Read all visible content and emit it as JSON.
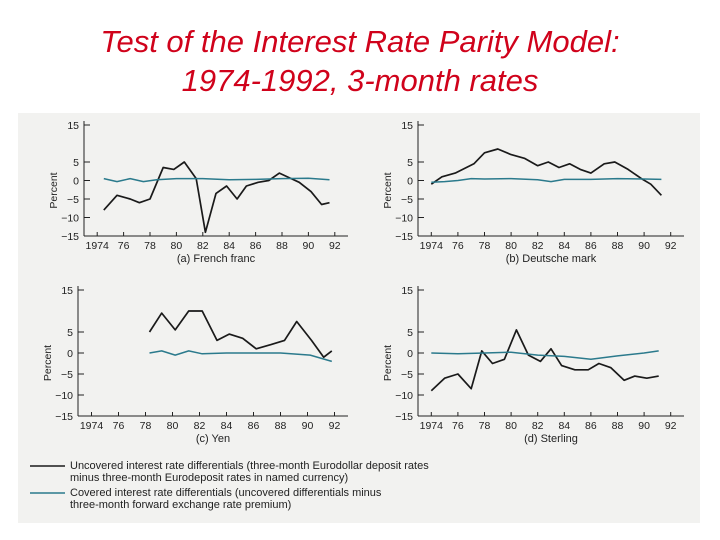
{
  "slide": {
    "title_line1": "Test of the Interest Rate Parity Model:",
    "title_line2": "1974-1992, 3-month rates"
  },
  "colors": {
    "uncovered": "#1a1a1a",
    "covered": "#2b7a8c",
    "title": "#d0021b"
  },
  "legend": {
    "uncovered_line1": "Uncovered interest rate differentials (three-month Eurodollar deposit rates",
    "uncovered_line2": "minus three-month Eurodeposit rates in named currency)",
    "covered_line1": "Covered interest rate differentials (uncovered differentials minus",
    "covered_line2": "three-month forward exchange rate premium)"
  },
  "chart_data": [
    {
      "type": "line",
      "caption": "(a) French franc",
      "ylabel": "Percent",
      "ylim": [
        -15,
        15
      ],
      "yticks": [
        "15",
        "5",
        "0",
        "−5",
        "−10",
        "−15"
      ],
      "yvals": [
        15,
        5,
        0,
        -5,
        -10,
        -15
      ],
      "xlim": [
        1973,
        1993
      ],
      "xtick_labels": [
        "1974",
        "76",
        "78",
        "80",
        "82",
        "84",
        "86",
        "88",
        "90",
        "92"
      ],
      "xtick_vals": [
        1974,
        1976,
        1978,
        1980,
        1982,
        1984,
        1986,
        1988,
        1990,
        1992
      ],
      "series": [
        {
          "name": "Uncovered",
          "key": "uncovered",
          "x": [
            1974.5,
            1975.5,
            1976.5,
            1977.2,
            1978,
            1979,
            1979.8,
            1980.6,
            1981.5,
            1982.2,
            1983,
            1983.8,
            1984.6,
            1985.3,
            1986.2,
            1987,
            1987.8,
            1988.7,
            1989.3,
            1990.2,
            1991,
            1991.6
          ],
          "y": [
            -8,
            -4,
            -5,
            -6,
            -5,
            3.5,
            3,
            5,
            0.5,
            -14,
            -3.5,
            -1.5,
            -5,
            -1.5,
            -0.5,
            0,
            2,
            0.5,
            -0.5,
            -3,
            -6.5,
            -6
          ]
        },
        {
          "name": "Covered",
          "key": "covered",
          "x": [
            1974.5,
            1975.5,
            1976.5,
            1977.5,
            1978.5,
            1980,
            1982,
            1984,
            1986,
            1988,
            1990,
            1991.6
          ],
          "y": [
            0.5,
            -0.3,
            0.5,
            -0.3,
            0.2,
            0.5,
            0.5,
            0.2,
            0.3,
            0.5,
            0.6,
            0.2
          ]
        }
      ]
    },
    {
      "type": "line",
      "caption": "(b) Deutsche mark",
      "ylabel": "Percent",
      "ylim": [
        -15,
        15
      ],
      "yticks": [
        "15",
        "5",
        "0",
        "−5",
        "−10",
        "−15"
      ],
      "yvals": [
        15,
        5,
        0,
        -5,
        -10,
        -15
      ],
      "xlim": [
        1973,
        1993
      ],
      "xtick_labels": [
        "1974",
        "76",
        "78",
        "80",
        "82",
        "84",
        "86",
        "88",
        "90",
        "92"
      ],
      "xtick_vals": [
        1974,
        1976,
        1978,
        1980,
        1982,
        1984,
        1986,
        1988,
        1990,
        1992
      ],
      "series": [
        {
          "name": "Uncovered",
          "key": "uncovered",
          "x": [
            1974,
            1974.8,
            1975.8,
            1977.2,
            1978,
            1979,
            1980,
            1981,
            1982,
            1982.8,
            1983.6,
            1984.4,
            1985.2,
            1986,
            1987,
            1987.8,
            1988.8,
            1989.8,
            1990.5,
            1991.3
          ],
          "y": [
            -1,
            1,
            2,
            4.5,
            7.5,
            8.5,
            7,
            6,
            4,
            5,
            3.5,
            4.5,
            3,
            2,
            4.5,
            5,
            3,
            0.5,
            -1,
            -4
          ]
        },
        {
          "name": "Covered",
          "key": "covered",
          "x": [
            1974,
            1975,
            1976,
            1977,
            1978,
            1980,
            1982,
            1983,
            1984,
            1986,
            1988,
            1990,
            1991.3
          ],
          "y": [
            -0.5,
            -0.3,
            0,
            0.5,
            0.4,
            0.5,
            0.2,
            -0.3,
            0.3,
            0.3,
            0.5,
            0.4,
            0.3
          ]
        }
      ]
    },
    {
      "type": "line",
      "caption": "(c) Yen",
      "ylabel": "Percent",
      "ylim": [
        -15,
        15
      ],
      "yticks": [
        "15",
        "5",
        "0",
        "−5",
        "−10",
        "−15"
      ],
      "yvals": [
        15,
        5,
        0,
        -5,
        -10,
        -15
      ],
      "xlim": [
        1973,
        1993
      ],
      "xtick_labels": [
        "1974",
        "76",
        "78",
        "80",
        "82",
        "84",
        "86",
        "88",
        "90",
        "92"
      ],
      "xtick_vals": [
        1974,
        1976,
        1978,
        1980,
        1982,
        1984,
        1986,
        1988,
        1990,
        1992
      ],
      "series": [
        {
          "name": "Uncovered",
          "key": "uncovered",
          "x": [
            1978.3,
            1979.2,
            1980.2,
            1981.2,
            1982.2,
            1983.3,
            1984.2,
            1985.2,
            1986.2,
            1987.3,
            1988.3,
            1989.2,
            1990.3,
            1991.2,
            1991.8
          ],
          "y": [
            5,
            9.5,
            5.5,
            10,
            10,
            3,
            4.5,
            3.5,
            1,
            2,
            3,
            7.5,
            3,
            -1,
            0.5
          ]
        },
        {
          "name": "Covered",
          "key": "covered",
          "x": [
            1978.3,
            1979.2,
            1980.2,
            1981.2,
            1982.2,
            1984,
            1986,
            1988,
            1990.2,
            1991.8
          ],
          "y": [
            0,
            0.5,
            -0.5,
            0.5,
            -0.2,
            0,
            0,
            0,
            -0.5,
            -2
          ]
        }
      ]
    },
    {
      "type": "line",
      "caption": "(d) Sterling",
      "ylabel": "Percent",
      "ylim": [
        -15,
        15
      ],
      "yticks": [
        "15",
        "5",
        "0",
        "−5",
        "−10",
        "−15"
      ],
      "yvals": [
        15,
        5,
        0,
        -5,
        -10,
        -15
      ],
      "xlim": [
        1973,
        1993
      ],
      "xtick_labels": [
        "1974",
        "76",
        "78",
        "80",
        "82",
        "84",
        "86",
        "88",
        "90",
        "92"
      ],
      "xtick_vals": [
        1974,
        1976,
        1978,
        1980,
        1982,
        1984,
        1986,
        1988,
        1990,
        1992
      ],
      "series": [
        {
          "name": "Uncovered",
          "key": "uncovered",
          "x": [
            1974,
            1975,
            1976,
            1977,
            1977.8,
            1978.6,
            1979.5,
            1980.4,
            1981.3,
            1982.2,
            1983,
            1983.8,
            1984.8,
            1985.8,
            1986.6,
            1987.5,
            1988.5,
            1989.3,
            1990.2,
            1991.1
          ],
          "y": [
            -9,
            -6,
            -5,
            -8.5,
            0.5,
            -2.5,
            -1.5,
            5.5,
            -0.5,
            -2,
            1,
            -3,
            -4,
            -4,
            -2.5,
            -3.5,
            -6.5,
            -5.5,
            -6,
            -5.5
          ]
        },
        {
          "name": "Covered",
          "key": "covered",
          "x": [
            1974,
            1976,
            1978,
            1980,
            1982,
            1984,
            1986,
            1988,
            1990,
            1991.1
          ],
          "y": [
            0,
            -0.2,
            0,
            0.2,
            -0.5,
            -0.8,
            -1.5,
            -0.7,
            0,
            0.5
          ]
        }
      ]
    }
  ]
}
